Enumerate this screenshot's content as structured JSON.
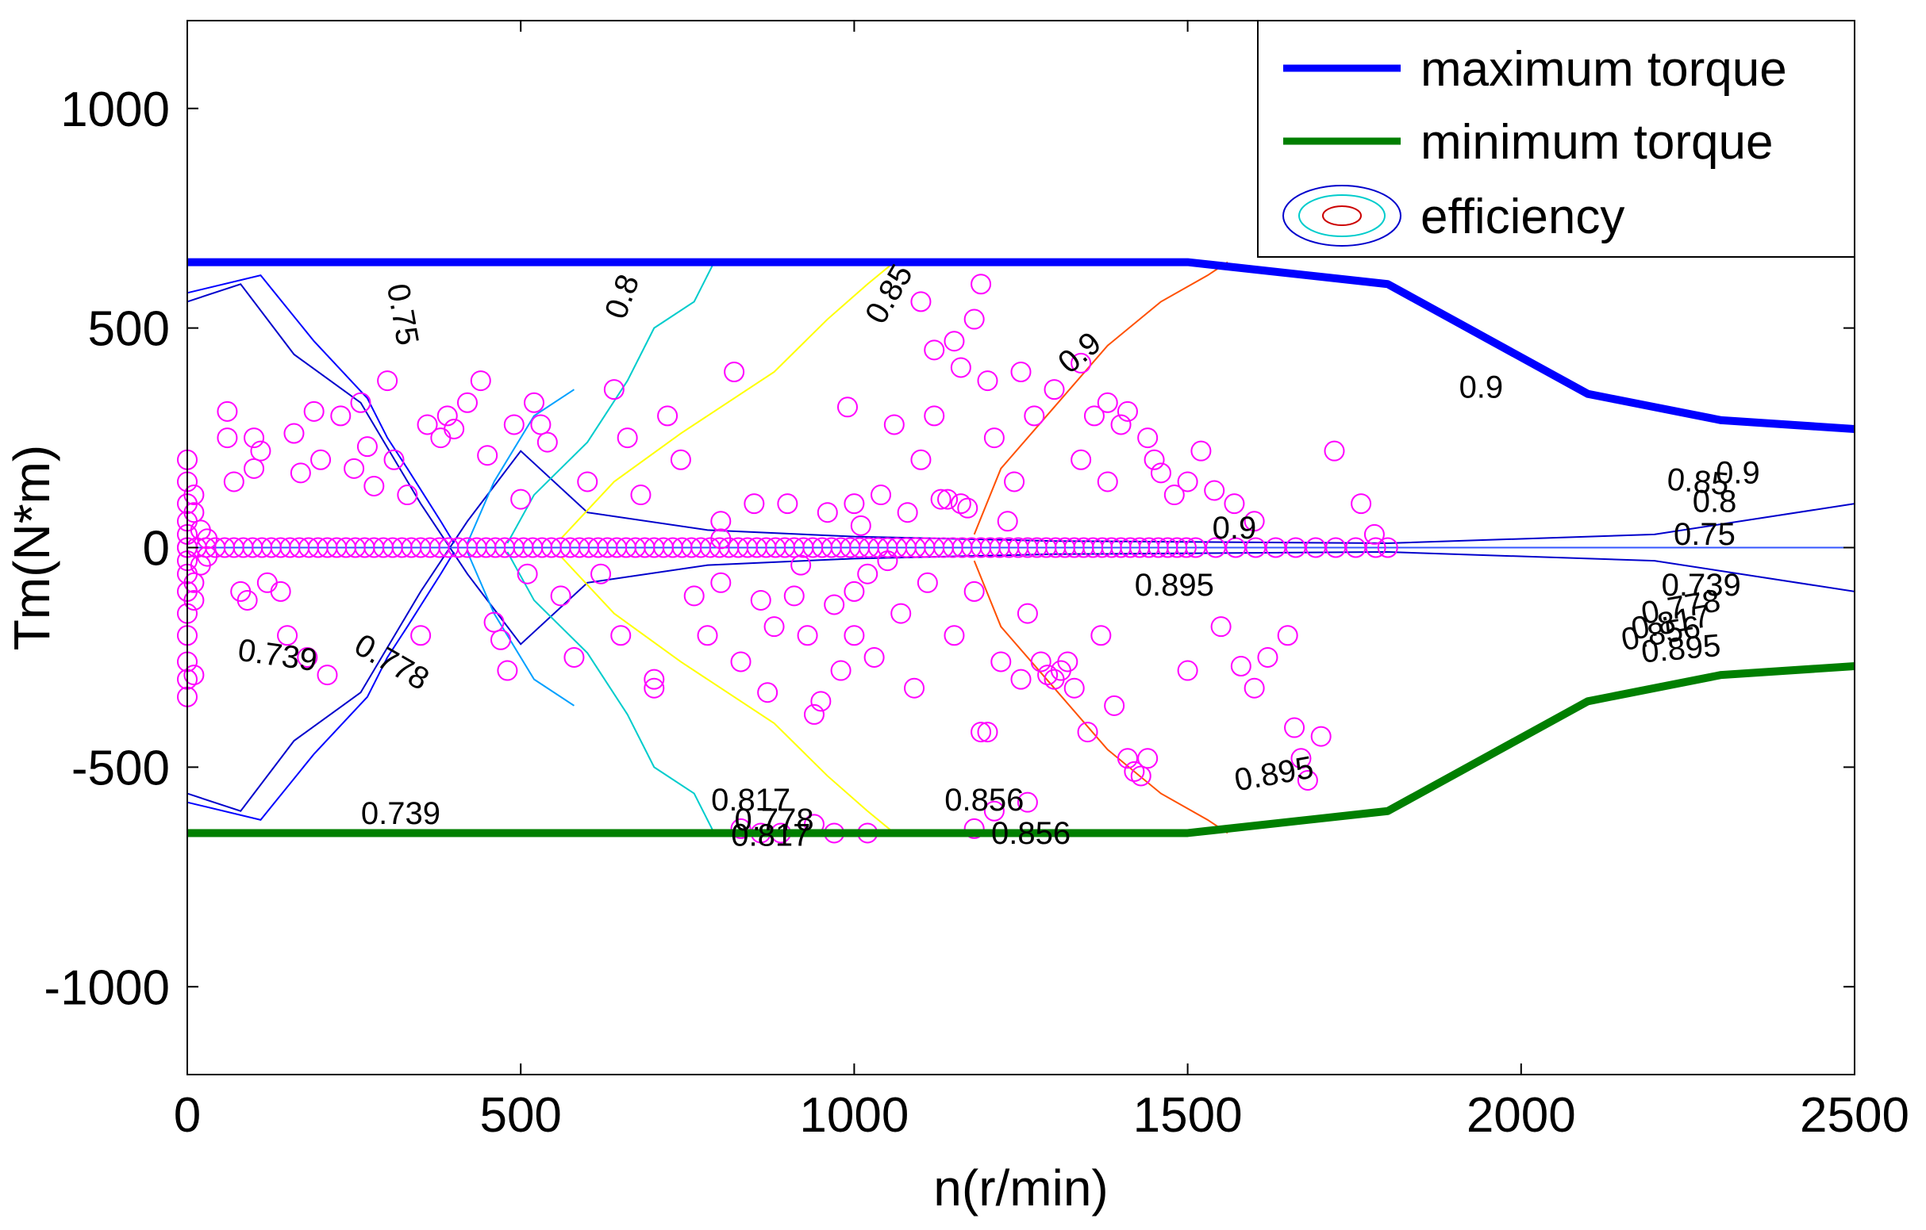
{
  "chart_data": {
    "type": "line",
    "title": "",
    "xlabel": "n(r/min)",
    "ylabel": "Tm(N*m)",
    "xlim": [
      0,
      2500
    ],
    "ylim": [
      -1200,
      1200
    ],
    "xticks": [
      0,
      500,
      1000,
      1500,
      2000,
      2500
    ],
    "yticks": [
      -1000,
      -500,
      0,
      500,
      1000
    ],
    "xtick_labels": [
      "0",
      "500",
      "1000",
      "1500",
      "2000",
      "2500"
    ],
    "ytick_labels": [
      "-1000",
      "-500",
      "0",
      "500",
      "1000"
    ],
    "grid": false,
    "legend_position": "top-right",
    "series": [
      {
        "name": "maximum torque",
        "color": "#0000ff",
        "x": [
          0,
          1500,
          1800,
          2100,
          2300,
          2500
        ],
        "y": [
          650,
          650,
          600,
          350,
          290,
          270
        ]
      },
      {
        "name": "minimum torque",
        "color": "#007f00",
        "x": [
          0,
          1500,
          1800,
          2100,
          2300,
          2500
        ],
        "y": [
          -650,
          -650,
          -600,
          -350,
          -290,
          -270
        ]
      }
    ],
    "efficiency_legend": "efficiency",
    "contours": [
      {
        "level": "0.739",
        "color": "#0000cc",
        "upper": [
          [
            0,
            560
          ],
          [
            80,
            600
          ],
          [
            160,
            440
          ],
          [
            260,
            330
          ],
          [
            350,
            100
          ],
          [
            420,
            -60
          ],
          [
            500,
            -220
          ],
          [
            600,
            -80
          ],
          [
            780,
            -40
          ],
          [
            1000,
            -25
          ],
          [
            1300,
            -15
          ],
          [
            1800,
            -10
          ],
          [
            2200,
            -30
          ],
          [
            2500,
            -100
          ]
        ]
      },
      {
        "level": "0.75",
        "color": "#0000ff",
        "upper": [
          [
            0,
            580
          ],
          [
            110,
            620
          ],
          [
            190,
            470
          ],
          [
            270,
            340
          ],
          [
            300,
            250
          ],
          [
            330,
            180
          ],
          [
            380,
            60
          ],
          [
            400,
            10
          ]
        ]
      },
      {
        "level": "0.778",
        "color": "#00a0ff",
        "upper": [
          [
            420,
            10
          ],
          [
            460,
            150
          ],
          [
            520,
            300
          ],
          [
            580,
            360
          ]
        ]
      },
      {
        "level": "0.8",
        "color": "#00cccc",
        "upper": [
          [
            480,
            10
          ],
          [
            520,
            120
          ],
          [
            600,
            240
          ],
          [
            660,
            380
          ],
          [
            700,
            500
          ],
          [
            760,
            560
          ],
          [
            790,
            650
          ]
        ]
      },
      {
        "level": "0.85",
        "color": "#ffff00",
        "upper": [
          [
            560,
            20
          ],
          [
            640,
            150
          ],
          [
            740,
            260
          ],
          [
            880,
            400
          ],
          [
            960,
            520
          ],
          [
            1020,
            600
          ],
          [
            1060,
            650
          ]
        ]
      },
      {
        "level": "0.9",
        "color": "#ff5000",
        "upper": [
          [
            1180,
            30
          ],
          [
            1220,
            180
          ],
          [
            1300,
            320
          ],
          [
            1380,
            460
          ],
          [
            1460,
            560
          ],
          [
            1530,
            620
          ],
          [
            1560,
            650
          ]
        ]
      }
    ],
    "contour_labels": [
      {
        "text": "0.75",
        "x": 320,
        "y": 530,
        "angle": 80
      },
      {
        "text": "0.8",
        "x": 655,
        "y": 570,
        "angle": -70
      },
      {
        "text": "0.85",
        "x": 1055,
        "y": 575,
        "angle": -60
      },
      {
        "text": "0.9",
        "x": 1340,
        "y": 440,
        "angle": -40
      },
      {
        "text": "0.9",
        "x": 1940,
        "y": 360,
        "angle": 0
      },
      {
        "text": "0.85",
        "x": 2265,
        "y": 145,
        "angle": 5
      },
      {
        "text": "0.9",
        "x": 2325,
        "y": 165,
        "angle": 0
      },
      {
        "text": "0.8",
        "x": 2290,
        "y": 100,
        "angle": 0
      },
      {
        "text": "0.75",
        "x": 2275,
        "y": 25,
        "angle": 0
      },
      {
        "text": "0.9",
        "x": 1570,
        "y": 40,
        "angle": 0
      },
      {
        "text": "0.895",
        "x": 1480,
        "y": -90,
        "angle": 0
      },
      {
        "text": "0.739",
        "x": 2270,
        "y": -90,
        "angle": 0
      },
      {
        "text": "0.778",
        "x": 2240,
        "y": -140,
        "angle": -10
      },
      {
        "text": "0.817",
        "x": 2225,
        "y": -175,
        "angle": -10
      },
      {
        "text": "0.856",
        "x": 2210,
        "y": -200,
        "angle": -10
      },
      {
        "text": "0.895",
        "x": 2240,
        "y": -235,
        "angle": -5
      },
      {
        "text": "0.739",
        "x": 135,
        "y": -250,
        "angle": 8
      },
      {
        "text": "0.778",
        "x": 305,
        "y": -265,
        "angle": 30
      },
      {
        "text": "0.739",
        "x": 320,
        "y": -610,
        "angle": 0
      },
      {
        "text": "0.895",
        "x": 1630,
        "y": -520,
        "angle": -10
      },
      {
        "text": "0.817",
        "x": 845,
        "y": -580,
        "angle": 0
      },
      {
        "text": "0.778",
        "x": 880,
        "y": -625,
        "angle": 0
      },
      {
        "text": "0.817",
        "x": 875,
        "y": -660,
        "angle": 0
      },
      {
        "text": "0.856",
        "x": 1195,
        "y": -580,
        "angle": 0
      },
      {
        "text": "0.856",
        "x": 1265,
        "y": -655,
        "angle": 0
      }
    ],
    "operating_points_color": "#ff00ff",
    "operating_points": [
      [
        0,
        200
      ],
      [
        0,
        150
      ],
      [
        0,
        100
      ],
      [
        0,
        60
      ],
      [
        0,
        30
      ],
      [
        0,
        0
      ],
      [
        0,
        -30
      ],
      [
        0,
        -60
      ],
      [
        0,
        -100
      ],
      [
        0,
        -150
      ],
      [
        0,
        -200
      ],
      [
        0,
        -260
      ],
      [
        0,
        -300
      ],
      [
        0,
        -340
      ],
      [
        10,
        120
      ],
      [
        10,
        80
      ],
      [
        10,
        -80
      ],
      [
        10,
        -120
      ],
      [
        10,
        -290
      ],
      [
        20,
        40
      ],
      [
        20,
        -40
      ],
      [
        30,
        20
      ],
      [
        30,
        -20
      ],
      [
        60,
        310
      ],
      [
        60,
        250
      ],
      [
        70,
        150
      ],
      [
        80,
        -100
      ],
      [
        90,
        -120
      ],
      [
        100,
        250
      ],
      [
        100,
        180
      ],
      [
        110,
        220
      ],
      [
        120,
        -80
      ],
      [
        140,
        -100
      ],
      [
        150,
        -200
      ],
      [
        160,
        260
      ],
      [
        170,
        170
      ],
      [
        180,
        -250
      ],
      [
        190,
        310
      ],
      [
        200,
        200
      ],
      [
        210,
        -290
      ],
      [
        230,
        300
      ],
      [
        250,
        180
      ],
      [
        260,
        330
      ],
      [
        270,
        230
      ],
      [
        280,
        140
      ],
      [
        300,
        380
      ],
      [
        310,
        200
      ],
      [
        330,
        120
      ],
      [
        350,
        -200
      ],
      [
        360,
        280
      ],
      [
        380,
        250
      ],
      [
        390,
        300
      ],
      [
        400,
        270
      ],
      [
        420,
        330
      ],
      [
        440,
        380
      ],
      [
        450,
        210
      ],
      [
        460,
        -170
      ],
      [
        470,
        -210
      ],
      [
        480,
        -280
      ],
      [
        490,
        280
      ],
      [
        500,
        110
      ],
      [
        510,
        -60
      ],
      [
        520,
        330
      ],
      [
        530,
        280
      ],
      [
        540,
        240
      ],
      [
        560,
        -110
      ],
      [
        580,
        -250
      ],
      [
        600,
        150
      ],
      [
        620,
        -60
      ],
      [
        640,
        360
      ],
      [
        650,
        -200
      ],
      [
        660,
        250
      ],
      [
        680,
        120
      ],
      [
        700,
        -300
      ],
      [
        700,
        -320
      ],
      [
        720,
        300
      ],
      [
        740,
        200
      ],
      [
        760,
        -110
      ],
      [
        780,
        -200
      ],
      [
        800,
        20
      ],
      [
        800,
        -80
      ],
      [
        800,
        60
      ],
      [
        820,
        400
      ],
      [
        830,
        -260
      ],
      [
        850,
        100
      ],
      [
        860,
        -120
      ],
      [
        870,
        -330
      ],
      [
        880,
        -180
      ],
      [
        900,
        100
      ],
      [
        910,
        -110
      ],
      [
        920,
        -40
      ],
      [
        930,
        -200
      ],
      [
        940,
        -380
      ],
      [
        950,
        -350
      ],
      [
        960,
        80
      ],
      [
        970,
        -130
      ],
      [
        980,
        -280
      ],
      [
        990,
        320
      ],
      [
        1000,
        100
      ],
      [
        1000,
        -100
      ],
      [
        1000,
        -200
      ],
      [
        1010,
        50
      ],
      [
        1020,
        -60
      ],
      [
        1030,
        -250
      ],
      [
        1040,
        120
      ],
      [
        1050,
        -30
      ],
      [
        1060,
        280
      ],
      [
        1070,
        -150
      ],
      [
        1080,
        80
      ],
      [
        1090,
        -320
      ],
      [
        1100,
        200
      ],
      [
        1110,
        -80
      ],
      [
        1120,
        300
      ],
      [
        1130,
        110
      ],
      [
        1140,
        110
      ],
      [
        1150,
        -200
      ],
      [
        1160,
        100
      ],
      [
        1170,
        90
      ],
      [
        1180,
        -100
      ],
      [
        1190,
        -420
      ],
      [
        1200,
        -420
      ],
      [
        1210,
        250
      ],
      [
        1220,
        -260
      ],
      [
        1230,
        60
      ],
      [
        1240,
        150
      ],
      [
        1250,
        -300
      ],
      [
        1260,
        -150
      ],
      [
        1270,
        300
      ],
      [
        1280,
        -260
      ],
      [
        1290,
        -290
      ],
      [
        1300,
        -300
      ],
      [
        1310,
        -280
      ],
      [
        1320,
        -260
      ],
      [
        1330,
        -320
      ],
      [
        1340,
        200
      ],
      [
        1350,
        -420
      ],
      [
        1360,
        300
      ],
      [
        1370,
        -200
      ],
      [
        1380,
        150
      ],
      [
        1390,
        -360
      ],
      [
        1400,
        280
      ],
      [
        1410,
        -480
      ],
      [
        1420,
        -510
      ],
      [
        1430,
        -520
      ],
      [
        1440,
        -480
      ],
      [
        1450,
        200
      ],
      [
        1480,
        120
      ],
      [
        1500,
        -280
      ],
      [
        1520,
        220
      ],
      [
        1550,
        -180
      ],
      [
        1580,
        -270
      ],
      [
        1600,
        -320
      ],
      [
        1620,
        -250
      ],
      [
        1650,
        -200
      ],
      [
        1660,
        -410
      ],
      [
        1670,
        -480
      ],
      [
        1680,
        -530
      ],
      [
        1700,
        -430
      ],
      [
        1720,
        220
      ],
      [
        1760,
        100
      ],
      [
        1780,
        30
      ],
      [
        1800,
        0
      ],
      [
        1190,
        600
      ],
      [
        1180,
        520
      ],
      [
        1150,
        470
      ],
      [
        1100,
        560
      ],
      [
        1120,
        450
      ],
      [
        1160,
        410
      ],
      [
        1200,
        380
      ],
      [
        1250,
        400
      ],
      [
        1300,
        360
      ],
      [
        1340,
        420
      ],
      [
        1380,
        330
      ],
      [
        1410,
        310
      ],
      [
        1440,
        250
      ],
      [
        1460,
        170
      ],
      [
        1500,
        150
      ],
      [
        1540,
        130
      ],
      [
        1570,
        100
      ],
      [
        1600,
        60
      ],
      [
        1260,
        -580
      ],
      [
        1210,
        -600
      ],
      [
        1180,
        -640
      ],
      [
        1020,
        -650
      ],
      [
        970,
        -650
      ],
      [
        940,
        -630
      ],
      [
        890,
        -650
      ],
      [
        860,
        -650
      ],
      [
        830,
        -640
      ]
    ]
  }
}
